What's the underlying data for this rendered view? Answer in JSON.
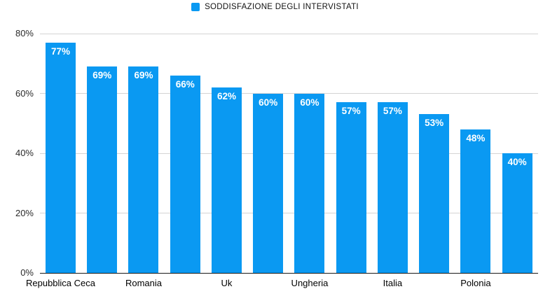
{
  "chart_data": {
    "type": "bar",
    "legend_label": "SODDISFAZIONE DEGLI INTERVISTATI",
    "legend_position": "top",
    "values": [
      77,
      69,
      69,
      66,
      62,
      60,
      60,
      57,
      57,
      53,
      48,
      40
    ],
    "bar_labels": [
      "77%",
      "69%",
      "69%",
      "66%",
      "62%",
      "60%",
      "60%",
      "57%",
      "57%",
      "53%",
      "48%",
      "40%"
    ],
    "x_tick_labels": [
      "Repubblica Ceca",
      "",
      "Romania",
      "",
      "Uk",
      "",
      "Ungheria",
      "",
      "Italia",
      "",
      "Polonia",
      ""
    ],
    "y_tick_labels": [
      "0%",
      "20%",
      "40%",
      "60%",
      "80%"
    ],
    "y_tick_values": [
      0,
      20,
      40,
      60,
      80
    ],
    "ylim": [
      0,
      80
    ],
    "grid": "horizontal",
    "bar_color": "#0a99f2",
    "value_label_color": "#ffffff",
    "gridline_color": "#d4d4d4",
    "axis_line_color": "#1a1a1a"
  }
}
